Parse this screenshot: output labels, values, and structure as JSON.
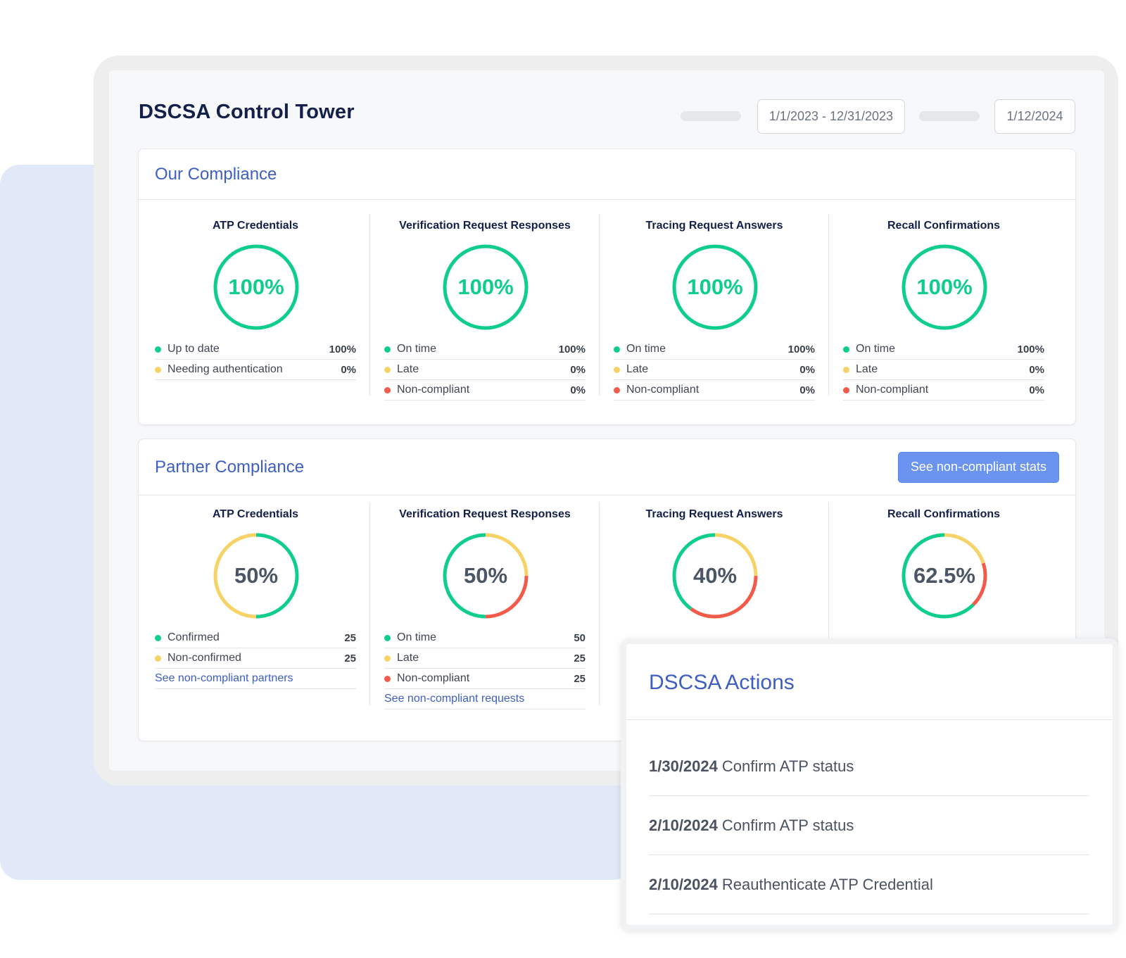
{
  "header": {
    "title": "DSCSA Control Tower",
    "date_range": "1/1/2023 - 12/31/2023",
    "date": "1/12/2024"
  },
  "colors": {
    "green": "#0fce8b",
    "yellow": "#f6d366",
    "red": "#f25a4a",
    "accent": "#3e5fc1",
    "button": "#6a94f0"
  },
  "our_compliance": {
    "title": "Our Compliance",
    "metrics": [
      {
        "title": "ATP Credentials",
        "percent": "100%",
        "rows": [
          {
            "label": "Up to date",
            "value": "100%",
            "color": "green"
          },
          {
            "label": "Needing authentication",
            "value": "0%",
            "color": "yellow"
          }
        ]
      },
      {
        "title": "Verification Request Responses",
        "percent": "100%",
        "rows": [
          {
            "label": "On time",
            "value": "100%",
            "color": "green"
          },
          {
            "label": "Late",
            "value": "0%",
            "color": "yellow"
          },
          {
            "label": "Non-compliant",
            "value": "0%",
            "color": "red"
          }
        ]
      },
      {
        "title": "Tracing Request Answers",
        "percent": "100%",
        "rows": [
          {
            "label": "On time",
            "value": "100%",
            "color": "green"
          },
          {
            "label": "Late",
            "value": "0%",
            "color": "yellow"
          },
          {
            "label": "Non-compliant",
            "value": "0%",
            "color": "red"
          }
        ]
      },
      {
        "title": "Recall Confirmations",
        "percent": "100%",
        "rows": [
          {
            "label": "On time",
            "value": "100%",
            "color": "green"
          },
          {
            "label": "Late",
            "value": "0%",
            "color": "yellow"
          },
          {
            "label": "Non-compliant",
            "value": "0%",
            "color": "red"
          }
        ]
      }
    ]
  },
  "partner_compliance": {
    "title": "Partner Compliance",
    "button_label": "See non-compliant stats",
    "metrics": [
      {
        "title": "ATP Credentials",
        "percent": "50%",
        "rows": [
          {
            "label": "Confirmed",
            "value": "25",
            "color": "green"
          },
          {
            "label": "Non-confirmed",
            "value": "25",
            "color": "yellow"
          }
        ],
        "link": "See non-compliant partners"
      },
      {
        "title": "Verification Request Responses",
        "percent": "50%",
        "rows": [
          {
            "label": "On time",
            "value": "50",
            "color": "green"
          },
          {
            "label": "Late",
            "value": "25",
            "color": "yellow"
          },
          {
            "label": "Non-compliant",
            "value": "25",
            "color": "red"
          }
        ],
        "link": "See non-compliant requests"
      },
      {
        "title": "Tracing Request Answers",
        "percent": "40%"
      },
      {
        "title": "Recall Confirmations",
        "percent": "62.5%"
      }
    ]
  },
  "actions": {
    "title": "DSCSA Actions",
    "items": [
      {
        "date": "1/30/2024",
        "text": "Confirm ATP status"
      },
      {
        "date": "2/10/2024",
        "text": "Confirm ATP status"
      },
      {
        "date": "2/10/2024",
        "text": "Reauthenticate ATP Credential"
      }
    ]
  }
}
